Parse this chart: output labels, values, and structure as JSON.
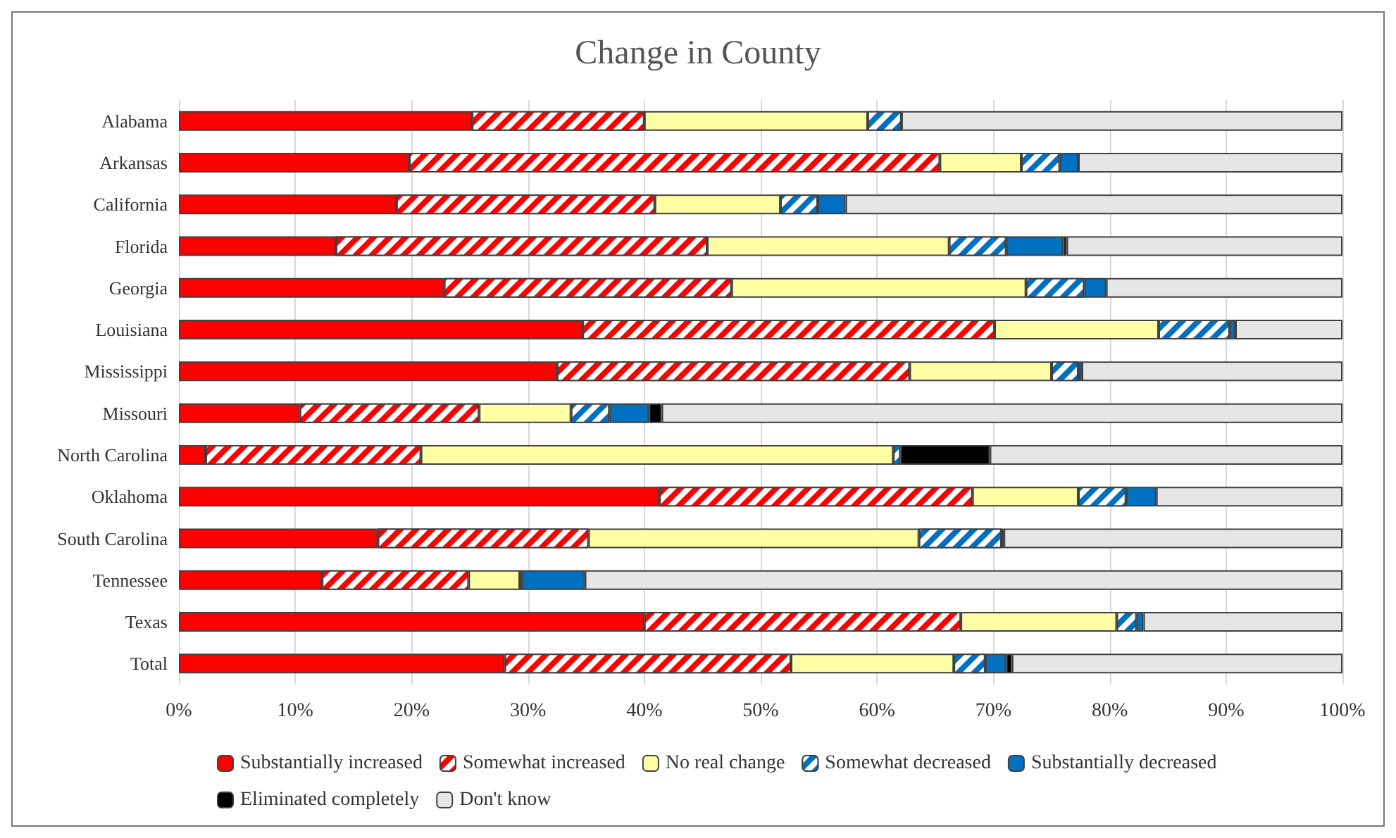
{
  "chart_data": {
    "type": "bar",
    "orientation": "horizontal",
    "stacked": true,
    "title": "Change in County",
    "categories": [
      "Alabama",
      "Arkansas",
      "California",
      "Florida",
      "Georgia",
      "Louisiana",
      "Mississippi",
      "Missouri",
      "North Carolina",
      "Oklahoma",
      "South Carolina",
      "Tennessee",
      "Texas",
      "Total"
    ],
    "series": [
      {
        "name": "Substantially increased",
        "color": "#ff0000",
        "values": [
          25.2,
          19.8,
          18.7,
          13.5,
          22.8,
          34.7,
          32.5,
          10.4,
          2.3,
          41.3,
          17.1,
          12.3,
          40.0,
          28.0
        ]
      },
      {
        "name": "Somewhat increased",
        "color": "#ff0000",
        "values": [
          14.8,
          45.6,
          22.2,
          31.9,
          24.7,
          35.4,
          30.3,
          15.4,
          18.5,
          26.9,
          18.1,
          12.6,
          27.2,
          24.6
        ]
      },
      {
        "name": "No real change",
        "color": "#ffffa6",
        "values": [
          19.2,
          7.0,
          10.8,
          20.8,
          25.3,
          14.1,
          12.2,
          7.9,
          40.6,
          9.1,
          28.4,
          4.4,
          13.4,
          14.0
        ]
      },
      {
        "name": "Somewhat decreased",
        "color": "#0070c0",
        "values": [
          2.9,
          3.3,
          3.2,
          4.9,
          5.0,
          6.1,
          2.3,
          3.3,
          0.6,
          4.1,
          7.1,
          0.2,
          1.7,
          2.7
        ]
      },
      {
        "name": "Substantially decreased",
        "color": "#0070c0",
        "values": [
          0,
          1.6,
          2.4,
          4.9,
          1.9,
          0.5,
          0.3,
          3.4,
          0,
          2.6,
          0.2,
          5.4,
          0.6,
          1.8
        ]
      },
      {
        "name": "Eliminated completely",
        "color": "#000000",
        "values": [
          0,
          0,
          0,
          0.3,
          0,
          0,
          0,
          1.1,
          7.7,
          0,
          0,
          0,
          0,
          0.5
        ]
      },
      {
        "name": "Don't know",
        "color": "#e6e6e6",
        "values": [
          37.9,
          22.7,
          42.7,
          23.7,
          20.3,
          9.2,
          22.4,
          58.5,
          30.3,
          16.0,
          29.1,
          65.1,
          17.1,
          28.4
        ]
      }
    ],
    "xlim": [
      0,
      100
    ],
    "xticks": [
      {
        "value": 0,
        "label": "0%"
      },
      {
        "value": 10,
        "label": "10%"
      },
      {
        "value": 20,
        "label": "20%"
      },
      {
        "value": 30,
        "label": "30%"
      },
      {
        "value": 40,
        "label": "40%"
      },
      {
        "value": 50,
        "label": "50%"
      },
      {
        "value": 60,
        "label": "60%"
      },
      {
        "value": 70,
        "label": "70%"
      },
      {
        "value": 80,
        "label": "80%"
      },
      {
        "value": 90,
        "label": "90%"
      },
      {
        "value": 100,
        "label": "100%"
      }
    ],
    "grid": "x",
    "legend": "bottom"
  }
}
